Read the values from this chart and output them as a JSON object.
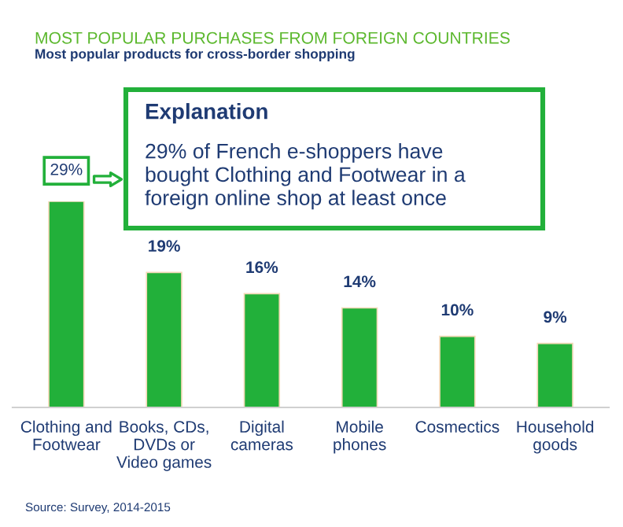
{
  "chart_data": {
    "type": "bar",
    "title": "MOST POPULAR PURCHASES FROM FOREIGN COUNTRIES",
    "subtitle": "Most popular products for cross-border shopping",
    "categories": [
      "Clothing and\nFootwear",
      "Books, CDs,\nDVDs or\nVideo games",
      "Digital\ncameras",
      "Mobile\nphones",
      "Cosmectics",
      "Household\ngoods"
    ],
    "values": [
      29,
      19,
      16,
      14,
      10,
      9
    ],
    "value_labels": [
      "29%",
      "19%",
      "16%",
      "14%",
      "10%",
      "9%"
    ],
    "color": "#22b03a",
    "grid": false,
    "legend": false,
    "tick_labels": "x",
    "annotations": [
      "Explanation",
      "29% of French e-shoppers have\nbought Clothing and Footwear in a\nforeign online shop at least once",
      "Source: Survey, 2014-2015"
    ]
  }
}
